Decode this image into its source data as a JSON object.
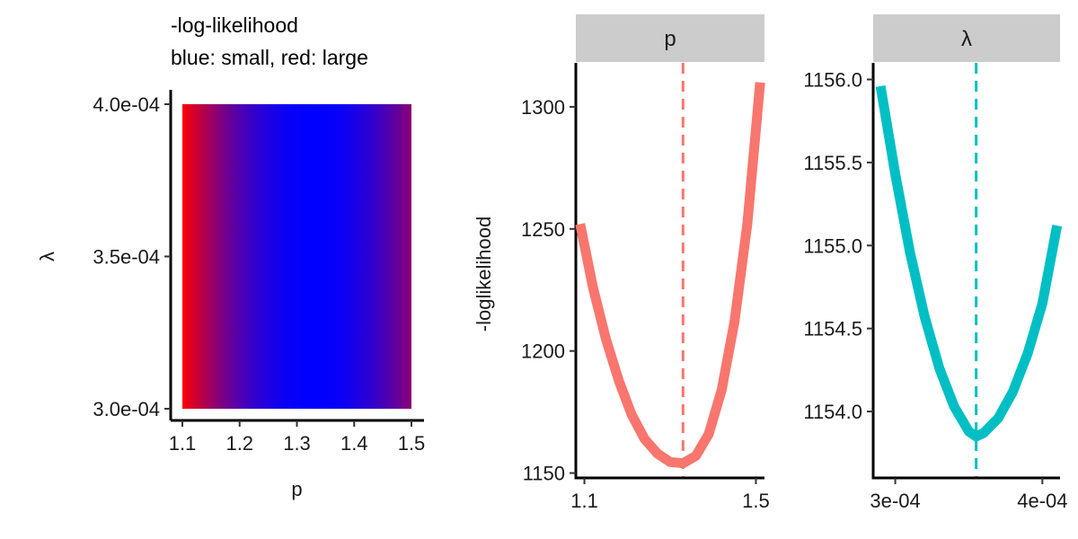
{
  "chart_data": [
    {
      "type": "heatmap",
      "title_lines": [
        "-log-likelihood",
        "blue: small, red: large"
      ],
      "xlabel": "p",
      "ylabel": "λ",
      "xlim": [
        1.1,
        1.5
      ],
      "ylim": [
        0.0003,
        0.0004
      ],
      "x_ticks": [
        1.1,
        1.2,
        1.3,
        1.4,
        1.5
      ],
      "x_tick_labels": [
        "1.1",
        "1.2",
        "1.3",
        "1.4",
        "1.5"
      ],
      "y_ticks": [
        0.0003,
        0.00035,
        0.0004
      ],
      "y_tick_labels": [
        "3.0e-04",
        "3.5e-04",
        "4.0e-04"
      ],
      "color_low": "#0000ff",
      "color_high": "#ff0000",
      "minimum_p": 1.33,
      "legend": "none"
    },
    {
      "type": "line",
      "facet": "p",
      "ylabel": "-loglikelihood",
      "color": "#F8766D",
      "xlim": [
        1.08,
        1.52
      ],
      "ylim": [
        1148,
        1318
      ],
      "x_ticks": [
        1.1,
        1.5
      ],
      "x_tick_labels": [
        "1.1",
        "1.5"
      ],
      "y_ticks": [
        1150,
        1200,
        1250,
        1300
      ],
      "y_tick_labels": [
        "1150",
        "1200",
        "1250",
        "1300"
      ],
      "vline": 1.33,
      "x": [
        1.09,
        1.12,
        1.15,
        1.18,
        1.21,
        1.24,
        1.27,
        1.3,
        1.33,
        1.36,
        1.39,
        1.42,
        1.45,
        1.48,
        1.51
      ],
      "y": [
        1252,
        1226,
        1205,
        1188,
        1174,
        1164,
        1158,
        1154.5,
        1154,
        1157,
        1166,
        1184,
        1212,
        1252,
        1310
      ]
    },
    {
      "type": "line",
      "facet": "λ",
      "color": "#00BFC4",
      "xlim": [
        0.000285,
        0.000412
      ],
      "ylim": [
        1153.6,
        1156.1
      ],
      "x_ticks": [
        0.0003,
        0.0004
      ],
      "x_tick_labels": [
        "3e-04",
        "4e-04"
      ],
      "y_ticks": [
        1154.0,
        1154.5,
        1155.0,
        1155.5,
        1156.0
      ],
      "y_tick_labels": [
        "1154.0",
        "1154.5",
        "1155.0",
        "1155.5",
        "1156.0"
      ],
      "vline": 0.000355,
      "x": [
        0.00029,
        0.0003,
        0.00031,
        0.00032,
        0.00033,
        0.00034,
        0.00035,
        0.000355,
        0.00036,
        0.00037,
        0.00038,
        0.00039,
        0.0004,
        0.00041
      ],
      "y": [
        1155.96,
        1155.43,
        1154.96,
        1154.57,
        1154.26,
        1154.03,
        1153.88,
        1153.85,
        1153.87,
        1153.96,
        1154.12,
        1154.35,
        1154.65,
        1155.12
      ]
    }
  ]
}
